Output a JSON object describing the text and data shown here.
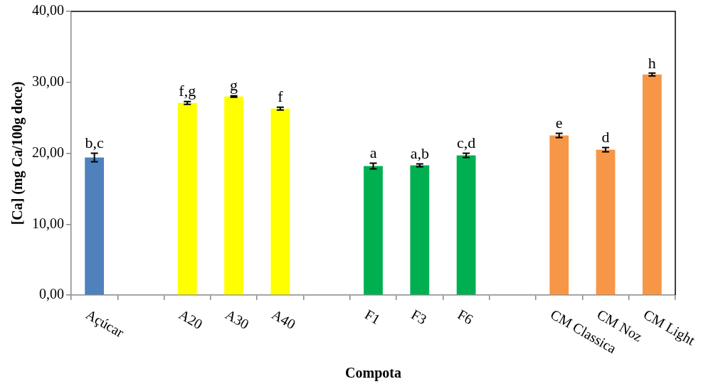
{
  "chart_data": {
    "type": "bar",
    "xlabel": "Compota",
    "ylabel": "[Ca] (mg Ca/100g doce)",
    "categories": [
      "Açúcar",
      null,
      "A20",
      "A30",
      "A40",
      null,
      "F1",
      "F3",
      "F6",
      null,
      "CM Classica",
      "CM Noz",
      "CM Light"
    ],
    "values": [
      19.4,
      null,
      27.1,
      28.0,
      26.3,
      null,
      18.2,
      18.3,
      19.7,
      null,
      22.5,
      20.5,
      31.1
    ],
    "errors": [
      0.6,
      null,
      0.2,
      0.1,
      0.2,
      null,
      0.4,
      0.2,
      0.3,
      null,
      0.3,
      0.3,
      0.2
    ],
    "colors": [
      "#4f81bd",
      null,
      "#ffff00",
      "#ffff00",
      "#ffff00",
      null,
      "#00b050",
      "#00b050",
      "#00b050",
      null,
      "#f79646",
      "#f79646",
      "#f79646"
    ],
    "ylim": [
      0,
      40
    ],
    "yticks": [
      {
        "value": 0,
        "label": "0,00"
      },
      {
        "value": 10,
        "label": "10,00"
      },
      {
        "value": 20,
        "label": "20,00"
      },
      {
        "value": 30,
        "label": "30,00"
      },
      {
        "value": 40,
        "label": "40,00"
      }
    ],
    "annotations": [
      {
        "text": "b,c",
        "x": "Açúcar",
        "y": 19.4
      },
      {
        "text": "f,g",
        "x": "A20",
        "y": 27.1
      },
      {
        "text": "g",
        "x": "A30",
        "y": 28.0
      },
      {
        "text": "f",
        "x": "A40",
        "y": 26.3
      },
      {
        "text": "a",
        "x": "F1",
        "y": 18.2
      },
      {
        "text": "a,b",
        "x": "F3",
        "y": 18.3
      },
      {
        "text": "c,d",
        "x": "F6",
        "y": 19.7
      },
      {
        "text": "e",
        "x": "CM Classica",
        "y": 22.5
      },
      {
        "text": "d",
        "x": "CM Noz",
        "y": 20.5
      },
      {
        "text": "h",
        "x": "CM Light",
        "y": 31.1
      }
    ]
  }
}
